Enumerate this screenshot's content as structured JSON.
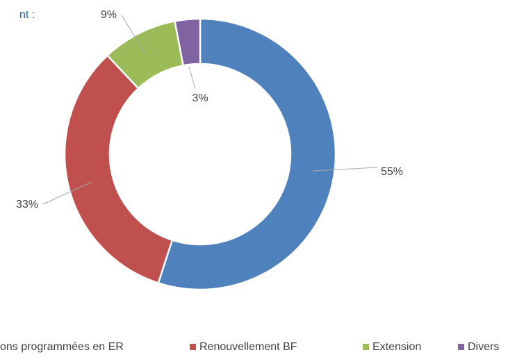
{
  "chart_data": {
    "type": "donut",
    "title": "nt :",
    "categories": [
      "ons programmées en ER",
      "Renouvellement BF",
      "Extension",
      "Divers"
    ],
    "values": [
      55,
      33,
      9,
      3
    ],
    "value_labels": [
      "55%",
      "33%",
      "9%",
      "3%"
    ],
    "colors": [
      "#4f81bd",
      "#c0504d",
      "#9bbb59",
      "#8064a2"
    ],
    "legend": "bottom"
  }
}
